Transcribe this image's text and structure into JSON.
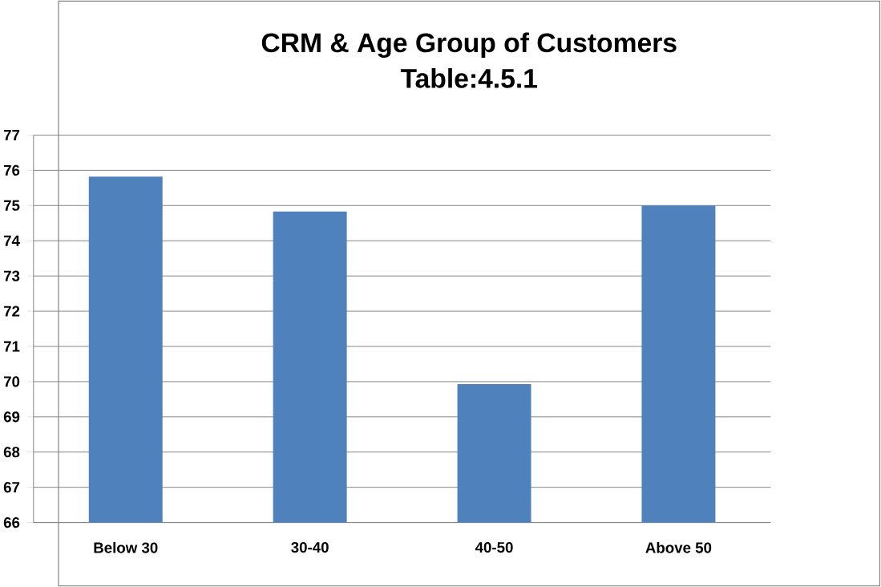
{
  "chart_data": {
    "type": "bar",
    "title": "CRM & Age Group of Customers",
    "subtitle": "Table:4.5.1",
    "categories": [
      "Below 30",
      "30-40",
      "40-50",
      "Above 50"
    ],
    "values": [
      75.82,
      74.83,
      69.93,
      75.0
    ],
    "color": "#4f81bd",
    "ylim": [
      66,
      77
    ],
    "yticks": [
      66,
      67,
      68,
      69,
      70,
      71,
      72,
      73,
      74,
      75,
      76,
      77
    ],
    "grid": "y"
  }
}
